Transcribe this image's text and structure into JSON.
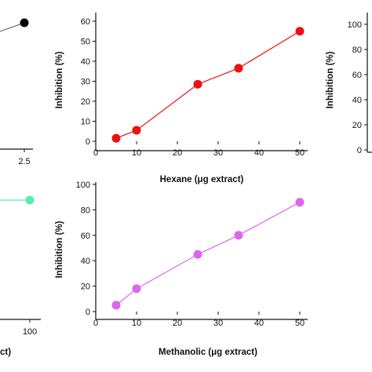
{
  "chart_data": [
    {
      "id": "top-left-partial",
      "type": "line",
      "color": "#000000",
      "x_ticks": [
        "2.5"
      ],
      "y_ticks": [],
      "xlabel": "",
      "ylabel": "",
      "xlim": [
        2.1,
        2.5
      ],
      "ylim": [
        0,
        60
      ],
      "series": [
        {
          "x": [
            2.1,
            2.5
          ],
          "y": [
            50.5,
            56
          ]
        }
      ]
    },
    {
      "id": "top-middle",
      "type": "line",
      "color": "#ee1111",
      "x_ticks": [
        "0",
        "10",
        "20",
        "30",
        "40",
        "50"
      ],
      "y_ticks": [
        "0",
        "10",
        "20",
        "30",
        "40",
        "50",
        "60"
      ],
      "xlabel": "Hexane (μg extract)",
      "ylabel": "Inhibition (%)",
      "xlim": [
        0,
        50
      ],
      "ylim": [
        0,
        60
      ],
      "series": [
        {
          "x": [
            5,
            10,
            25,
            35,
            50
          ],
          "y": [
            1.5,
            5.5,
            28.5,
            36.5,
            55
          ]
        }
      ]
    },
    {
      "id": "top-right-partial",
      "type": "line",
      "color": "#000000",
      "x_ticks": [],
      "y_ticks": [
        "0",
        "20",
        "40",
        "60",
        "80",
        "100"
      ],
      "xlabel": "",
      "ylabel": "Inhibition (%)",
      "ylim": [
        0,
        100
      ],
      "series": []
    },
    {
      "id": "bottom-left-partial",
      "type": "line",
      "color": "#55eeb0",
      "x_ticks": [
        "100"
      ],
      "y_ticks": [],
      "xlabel": "ct)",
      "ylabel": "",
      "xlim": [
        0,
        100
      ],
      "ylim": [
        0,
        100
      ],
      "series": [
        {
          "x": [
            0,
            100
          ],
          "y": [
            89,
            89
          ]
        }
      ]
    },
    {
      "id": "bottom-middle",
      "type": "line",
      "color": "#dd66ee",
      "x_ticks": [
        "0",
        "10",
        "20",
        "30",
        "40",
        "50"
      ],
      "y_ticks": [
        "0",
        "20",
        "40",
        "60",
        "80",
        "100"
      ],
      "xlabel": "Methanolic (μg extract)",
      "ylabel": "Inhibition (%)",
      "xlim": [
        0,
        50
      ],
      "ylim": [
        0,
        100
      ],
      "series": [
        {
          "x": [
            5,
            10,
            25,
            35,
            50
          ],
          "y": [
            5,
            18,
            45,
            60,
            86
          ]
        }
      ]
    }
  ]
}
